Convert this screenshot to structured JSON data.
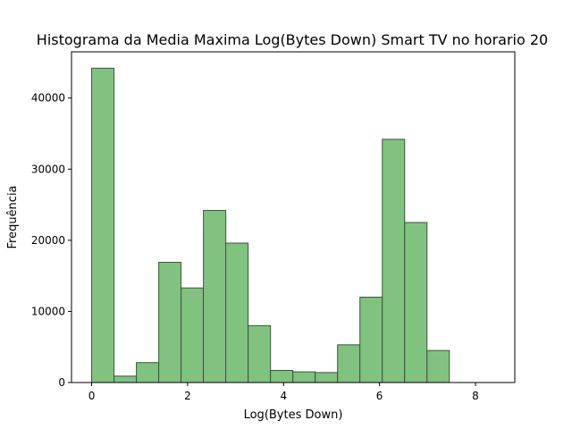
{
  "chart_data": {
    "type": "bar",
    "title": "Histograma da Media Maxima Log(Bytes Down) Smart TV no horario 20",
    "xlabel": "Log(Bytes Down)",
    "ylabel": "Frequência",
    "xlim": [
      -0.42,
      8.82
    ],
    "ylim": [
      0,
      46500
    ],
    "x_ticks": [
      0,
      2,
      4,
      6,
      8
    ],
    "y_ticks": [
      0,
      10000,
      20000,
      30000,
      40000
    ],
    "bin_edges": [
      0,
      0.466,
      0.932,
      1.398,
      1.864,
      2.33,
      2.796,
      3.262,
      3.728,
      4.194,
      4.66,
      5.126,
      5.592,
      6.058,
      6.524,
      6.99,
      7.456,
      7.922,
      8.388
    ],
    "values": [
      44200,
      900,
      2800,
      16900,
      13300,
      24200,
      19600,
      8000,
      1700,
      1500,
      1400,
      5300,
      12000,
      34200,
      22500,
      4500,
      0,
      0
    ],
    "bar_color": "#81c281",
    "edge_color": "#3a553a",
    "grid": false
  }
}
